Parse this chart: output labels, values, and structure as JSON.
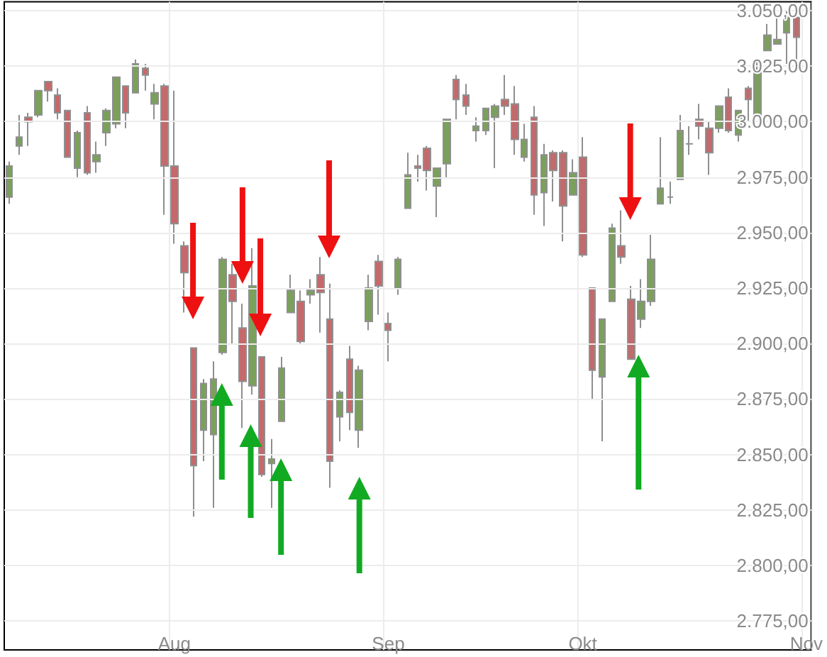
{
  "chart_data": {
    "type": "candlestick",
    "categories": [
      null,
      null,
      null,
      null,
      null,
      null,
      null,
      null,
      null,
      null,
      null,
      null,
      null,
      null,
      null,
      null,
      null,
      "Aug",
      null,
      null,
      null,
      null,
      null,
      null,
      null,
      null,
      null,
      null,
      null,
      null,
      null,
      null,
      null,
      null,
      null,
      null,
      null,
      null,
      null,
      "Sep",
      null,
      null,
      null,
      null,
      null,
      null,
      null,
      null,
      null,
      null,
      null,
      null,
      null,
      null,
      null,
      null,
      null,
      null,
      null,
      "Okt",
      null,
      null,
      null,
      null,
      null,
      null,
      null,
      null,
      null,
      null,
      null,
      null,
      null,
      null,
      null,
      null,
      null,
      null,
      null,
      null,
      null,
      null,
      "Nov"
    ],
    "ohlc": [
      [
        2966,
        2982,
        2963,
        2980
      ],
      [
        2989,
        3003,
        2985,
        2993
      ],
      [
        3002,
        3004,
        2989,
        3000
      ],
      [
        3003,
        3014,
        3002,
        3014
      ],
      [
        3018,
        3018,
        3009,
        3014
      ],
      [
        3012,
        3015,
        3001,
        3004
      ],
      [
        3005,
        3005,
        2984,
        2984
      ],
      [
        2979,
        2996,
        2975,
        2995
      ],
      [
        3004,
        3007,
        2976,
        2977
      ],
      [
        2982,
        2991,
        2977,
        2985
      ],
      [
        2995,
        3006,
        2989,
        3005
      ],
      [
        2999,
        3020,
        2997,
        3020
      ],
      [
        3016,
        3016,
        2997,
        3004
      ],
      [
        3013,
        3028,
        3013,
        3026
      ],
      [
        3024,
        3026,
        3014,
        3021
      ],
      [
        3008,
        3017,
        3001,
        3013
      ],
      [
        3016,
        3017,
        2958,
        2980
      ],
      [
        2980,
        3014,
        2945,
        2954
      ],
      [
        2944,
        2946,
        2914,
        2932
      ],
      [
        2898,
        2898,
        2822,
        2845
      ],
      [
        2861,
        2884,
        2847,
        2882
      ],
      [
        2859,
        2892,
        2826,
        2884
      ],
      [
        2896,
        2939,
        2895,
        2938
      ],
      [
        2931,
        2936,
        2900,
        2919
      ],
      [
        2907,
        2918,
        2862,
        2883
      ],
      [
        2881,
        2943,
        2877,
        2926
      ],
      [
        2894,
        2894,
        2840,
        2841
      ],
      [
        2846,
        2857,
        2826,
        2848
      ],
      [
        2865,
        2894,
        2865,
        2889
      ],
      [
        2914,
        2931,
        2914,
        2924
      ],
      [
        2919,
        2924,
        2900,
        2901
      ],
      [
        2922,
        2929,
        2918,
        2924
      ],
      [
        2931,
        2939,
        2905,
        2923
      ],
      [
        2911,
        2927,
        2835,
        2847
      ],
      [
        2867,
        2879,
        2856,
        2878
      ],
      [
        2893,
        2899,
        2861,
        2869
      ],
      [
        2861,
        2890,
        2853,
        2888
      ],
      [
        2910,
        2931,
        2906,
        2925
      ],
      [
        2937,
        2940,
        2913,
        2926
      ],
      [
        2909,
        2914,
        2892,
        2906
      ],
      [
        2925,
        2939,
        2922,
        2938
      ],
      [
        2961,
        2986,
        2961,
        2976
      ],
      [
        2980,
        2985,
        2973,
        2979
      ],
      [
        2988,
        2989,
        2969,
        2978
      ],
      [
        2971,
        2979,
        2957,
        2979
      ],
      [
        2981,
        3001,
        2975,
        3001
      ],
      [
        3019,
        3021,
        3001,
        3010
      ],
      [
        3012,
        3017,
        3003,
        3007
      ],
      [
        2996,
        3002,
        2991,
        2998
      ],
      [
        2996,
        3006,
        2994,
        3006
      ],
      [
        3002,
        3008,
        2979,
        3007
      ],
      [
        3010,
        3021,
        3003,
        3007
      ],
      [
        3008,
        3016,
        2985,
        2992
      ],
      [
        2984,
        2999,
        2982,
        2992
      ],
      [
        3002,
        3007,
        2958,
        2967
      ],
      [
        2968,
        2990,
        2953,
        2985
      ],
      [
        2986,
        2987,
        2964,
        2978
      ],
      [
        2986,
        2987,
        2946,
        2962
      ],
      [
        2967,
        2983,
        2967,
        2977
      ],
      [
        2984,
        2993,
        2939,
        2940
      ],
      [
        2925,
        2925,
        2875,
        2888
      ],
      [
        2885,
        2911,
        2856,
        2911
      ],
      [
        2919,
        2954,
        2919,
        2952
      ],
      [
        2944,
        2960,
        2936,
        2939
      ],
      [
        2920,
        2926,
        2893,
        2893
      ],
      [
        2911,
        2929,
        2907,
        2919
      ],
      [
        2919,
        2949,
        2917,
        2938
      ],
      [
        2963,
        2993,
        2963,
        2970
      ],
      [
        2966,
        2973,
        2963,
        2966
      ],
      [
        2974,
        3003,
        2974,
        2996
      ],
      [
        2990,
        2998,
        2985,
        2990
      ],
      [
        3001,
        3008,
        2992,
        2998
      ],
      [
        2997,
        3000,
        2976,
        2986
      ],
      [
        2997,
        3007,
        2995,
        3007
      ],
      [
        3011,
        3015,
        2995,
        2996
      ],
      [
        2994,
        3005,
        2991,
        3005
      ],
      [
        3015,
        3016,
        3000,
        3010
      ],
      [
        3003,
        3027,
        3002,
        3023
      ],
      [
        3032,
        3044,
        3032,
        3039
      ],
      [
        3035,
        3048,
        3035,
        3037
      ],
      [
        3040,
        3050,
        3026,
        3047
      ],
      [
        3047,
        3047,
        3023,
        3038
      ],
      null
    ],
    "ylim": [
      2762,
      3054
    ],
    "yticks": [
      {
        "value": 2775,
        "label": "2.775,00"
      },
      {
        "value": 2800,
        "label": "2.800,00"
      },
      {
        "value": 2825,
        "label": "2.825,00"
      },
      {
        "value": 2850,
        "label": "2.850,00"
      },
      {
        "value": 2875,
        "label": "2.875,00"
      },
      {
        "value": 2900,
        "label": "2.900,00"
      },
      {
        "value": 2925,
        "label": "2.925,00"
      },
      {
        "value": 2950,
        "label": "2.950,00"
      },
      {
        "value": 2975,
        "label": "2.975,00"
      },
      {
        "value": 3000,
        "label": "3.000,00"
      },
      {
        "value": 3025,
        "label": "3.025,00"
      },
      {
        "value": 3050,
        "label": "3.050,00"
      }
    ],
    "grid": true
  }
}
